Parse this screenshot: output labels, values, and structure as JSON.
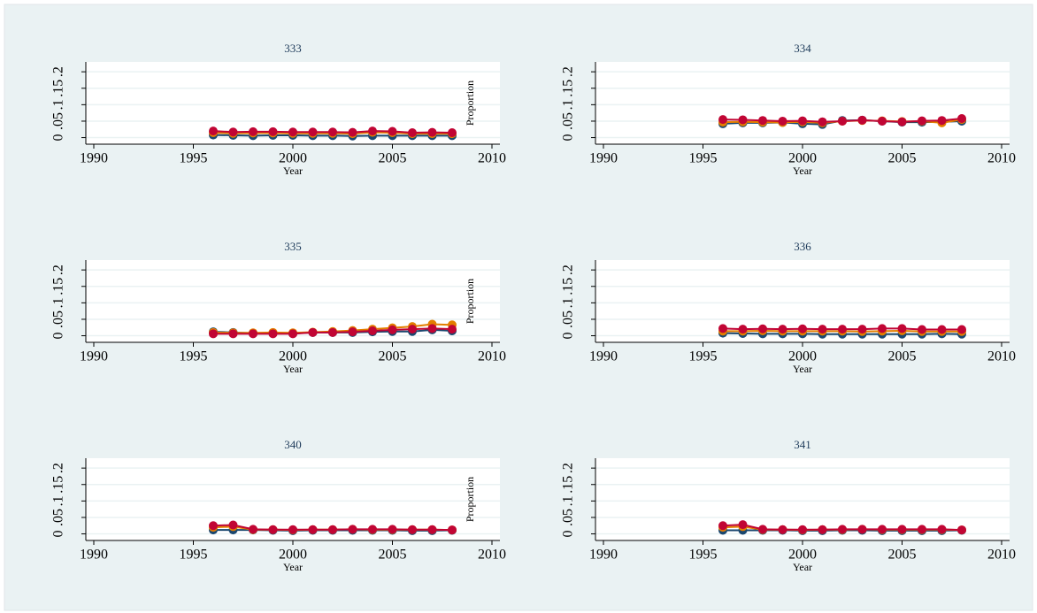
{
  "chart_data": [
    {
      "type": "line",
      "title": "333",
      "xlabel": "Year",
      "x": [
        1996,
        1997,
        1998,
        1999,
        2000,
        2001,
        2002,
        2003,
        2004,
        2005,
        2006,
        2007,
        2008
      ],
      "xlim": [
        1989.6,
        2010.4
      ],
      "xticks": [
        1990,
        1995,
        2000,
        2005,
        2010
      ],
      "ylim": [
        -0.02,
        0.23
      ],
      "yticks": [
        0,
        {
          "value": 0.05,
          "label": ".05"
        },
        {
          "value": 0.1,
          "label": ".1"
        },
        {
          "value": 0.15,
          "label": ".15"
        },
        {
          "value": 0.2,
          "label": ".2"
        }
      ],
      "grid": true,
      "series": [
        {
          "color": "#1a476f",
          "values": [
            0.008,
            0.007,
            0.006,
            0.007,
            0.007,
            0.006,
            0.006,
            0.005,
            0.006,
            0.006,
            0.006,
            0.006,
            0.006
          ]
        },
        {
          "color": "#e37e00",
          "values": [
            0.015,
            0.013,
            0.014,
            0.014,
            0.013,
            0.013,
            0.013,
            0.012,
            0.016,
            0.015,
            0.012,
            0.012,
            0.012
          ]
        },
        {
          "color": "#c10534",
          "values": [
            0.02,
            0.017,
            0.018,
            0.018,
            0.017,
            0.017,
            0.017,
            0.016,
            0.02,
            0.019,
            0.015,
            0.016,
            0.015
          ]
        }
      ]
    },
    {
      "type": "line",
      "title": "334",
      "xlabel": "Year",
      "ylabel": "Proportion",
      "x": [
        1996,
        1997,
        1998,
        1999,
        2000,
        2001,
        2002,
        2003,
        2004,
        2005,
        2006,
        2007,
        2008
      ],
      "xlim": [
        1989.6,
        2010.4
      ],
      "xticks": [
        1990,
        1995,
        2000,
        2005,
        2010
      ],
      "ylim": [
        -0.02,
        0.23
      ],
      "yticks": [
        0,
        {
          "value": 0.05,
          "label": ".05"
        },
        {
          "value": 0.1,
          "label": ".1"
        },
        {
          "value": 0.15,
          "label": ".15"
        },
        {
          "value": 0.2,
          "label": ".2"
        }
      ],
      "grid": true,
      "series": [
        {
          "color": "#1a476f",
          "values": [
            0.042,
            0.045,
            0.045,
            0.046,
            0.042,
            0.04,
            0.052,
            0.053,
            0.05,
            0.047,
            0.047,
            0.048,
            0.05
          ]
        },
        {
          "color": "#e37e00",
          "values": [
            0.047,
            0.048,
            0.047,
            0.046,
            0.048,
            0.045,
            0.05,
            0.052,
            0.051,
            0.049,
            0.05,
            0.045,
            0.055
          ]
        },
        {
          "color": "#c10534",
          "values": [
            0.055,
            0.054,
            0.052,
            0.05,
            0.051,
            0.048,
            0.05,
            0.053,
            0.05,
            0.048,
            0.051,
            0.052,
            0.058
          ]
        }
      ]
    },
    {
      "type": "line",
      "title": "335",
      "xlabel": "Year",
      "x": [
        1996,
        1997,
        1998,
        1999,
        2000,
        2001,
        2002,
        2003,
        2004,
        2005,
        2006,
        2007,
        2008
      ],
      "xlim": [
        1989.6,
        2010.4
      ],
      "xticks": [
        1990,
        1995,
        2000,
        2005,
        2010
      ],
      "ylim": [
        -0.02,
        0.23
      ],
      "yticks": [
        0,
        {
          "value": 0.05,
          "label": ".05"
        },
        {
          "value": 0.1,
          "label": ".1"
        },
        {
          "value": 0.15,
          "label": ".15"
        },
        {
          "value": 0.2,
          "label": ".2"
        }
      ],
      "grid": true,
      "series": [
        {
          "color": "#1a476f",
          "values": [
            0.012,
            0.01,
            0.008,
            0.008,
            0.007,
            0.01,
            0.01,
            0.01,
            0.012,
            0.013,
            0.013,
            0.018,
            0.015
          ]
        },
        {
          "color": "#e37e00",
          "values": [
            0.01,
            0.009,
            0.009,
            0.01,
            0.009,
            0.011,
            0.013,
            0.016,
            0.02,
            0.024,
            0.028,
            0.035,
            0.033
          ]
        },
        {
          "color": "#c10534",
          "values": [
            0.006,
            0.006,
            0.006,
            0.006,
            0.006,
            0.01,
            0.01,
            0.012,
            0.015,
            0.018,
            0.02,
            0.022,
            0.02
          ]
        }
      ]
    },
    {
      "type": "line",
      "title": "336",
      "xlabel": "Year",
      "ylabel": "Proportion",
      "x": [
        1996,
        1997,
        1998,
        1999,
        2000,
        2001,
        2002,
        2003,
        2004,
        2005,
        2006,
        2007,
        2008
      ],
      "xlim": [
        1989.6,
        2010.4
      ],
      "xticks": [
        1990,
        1995,
        2000,
        2005,
        2010
      ],
      "ylim": [
        -0.02,
        0.23
      ],
      "yticks": [
        0,
        {
          "value": 0.05,
          "label": ".05"
        },
        {
          "value": 0.1,
          "label": ".1"
        },
        {
          "value": 0.15,
          "label": ".15"
        },
        {
          "value": 0.2,
          "label": ".2"
        }
      ],
      "grid": true,
      "series": [
        {
          "color": "#1a476f",
          "values": [
            0.008,
            0.007,
            0.006,
            0.006,
            0.006,
            0.005,
            0.005,
            0.005,
            0.005,
            0.005,
            0.005,
            0.006,
            0.005
          ]
        },
        {
          "color": "#e37e00",
          "values": [
            0.014,
            0.014,
            0.015,
            0.014,
            0.014,
            0.014,
            0.014,
            0.013,
            0.014,
            0.015,
            0.013,
            0.013,
            0.013
          ]
        },
        {
          "color": "#c10534",
          "values": [
            0.022,
            0.02,
            0.021,
            0.02,
            0.021,
            0.02,
            0.02,
            0.02,
            0.022,
            0.022,
            0.019,
            0.019,
            0.019
          ]
        }
      ]
    },
    {
      "type": "line",
      "title": "340",
      "xlabel": "Year",
      "x": [
        1996,
        1997,
        1998,
        1999,
        2000,
        2001,
        2002,
        2003,
        2004,
        2005,
        2006,
        2007,
        2008
      ],
      "xlim": [
        1989.6,
        2010.4
      ],
      "xticks": [
        1990,
        1995,
        2000,
        2005,
        2010
      ],
      "ylim": [
        -0.02,
        0.23
      ],
      "yticks": [
        0,
        {
          "value": 0.05,
          "label": ".05"
        },
        {
          "value": 0.1,
          "label": ".1"
        },
        {
          "value": 0.15,
          "label": ".15"
        },
        {
          "value": 0.2,
          "label": ".2"
        }
      ],
      "grid": true,
      "series": [
        {
          "color": "#1a476f",
          "values": [
            0.012,
            0.012,
            0.012,
            0.011,
            0.01,
            0.011,
            0.011,
            0.011,
            0.011,
            0.011,
            0.01,
            0.01,
            0.011
          ]
        },
        {
          "color": "#e37e00",
          "values": [
            0.02,
            0.022,
            0.013,
            0.013,
            0.012,
            0.013,
            0.013,
            0.014,
            0.013,
            0.013,
            0.013,
            0.013,
            0.012
          ]
        },
        {
          "color": "#c10534",
          "values": [
            0.025,
            0.027,
            0.014,
            0.013,
            0.013,
            0.013,
            0.013,
            0.014,
            0.014,
            0.014,
            0.013,
            0.013,
            0.012
          ]
        }
      ]
    },
    {
      "type": "line",
      "title": "341",
      "xlabel": "Year",
      "ylabel": "Proportion",
      "x": [
        1996,
        1997,
        1998,
        1999,
        2000,
        2001,
        2002,
        2003,
        2004,
        2005,
        2006,
        2007,
        2008
      ],
      "xlim": [
        1989.6,
        2010.4
      ],
      "xticks": [
        1990,
        1995,
        2000,
        2005,
        2010
      ],
      "ylim": [
        -0.02,
        0.23
      ],
      "yticks": [
        0,
        {
          "value": 0.05,
          "label": ".05"
        },
        {
          "value": 0.1,
          "label": ".1"
        },
        {
          "value": 0.15,
          "label": ".15"
        },
        {
          "value": 0.2,
          "label": ".2"
        }
      ],
      "grid": true,
      "series": [
        {
          "color": "#1a476f",
          "values": [
            0.011,
            0.011,
            0.011,
            0.011,
            0.01,
            0.01,
            0.011,
            0.011,
            0.01,
            0.01,
            0.01,
            0.01,
            0.011
          ]
        },
        {
          "color": "#e37e00",
          "values": [
            0.02,
            0.022,
            0.013,
            0.013,
            0.012,
            0.013,
            0.013,
            0.014,
            0.013,
            0.013,
            0.013,
            0.013,
            0.012
          ]
        },
        {
          "color": "#c10534",
          "values": [
            0.025,
            0.028,
            0.014,
            0.013,
            0.013,
            0.013,
            0.014,
            0.014,
            0.014,
            0.014,
            0.014,
            0.014,
            0.012
          ]
        }
      ]
    }
  ]
}
